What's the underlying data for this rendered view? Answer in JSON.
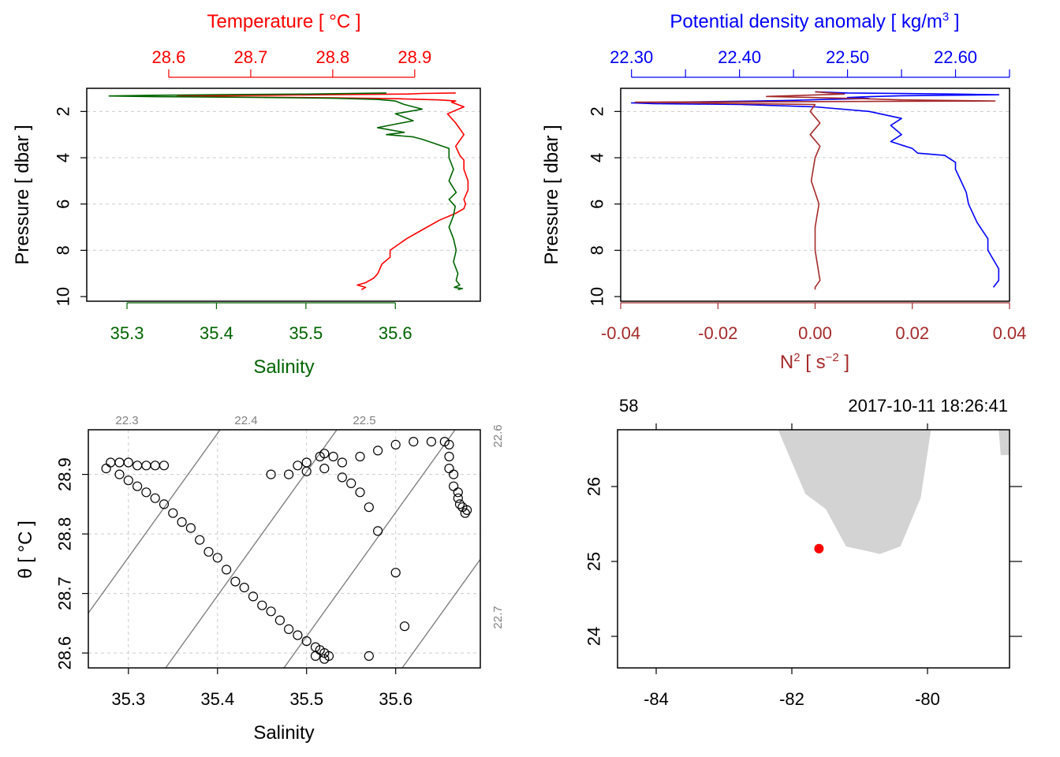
{
  "chart_data": [
    {
      "type": "line",
      "panel": "temperature-salinity-profile",
      "title": "",
      "ylabel": "Pressure [ dbar ]",
      "y_axis": {
        "range": [
          10.2,
          1.0
        ],
        "reversed": true,
        "ticks": [
          2,
          4,
          6,
          8,
          10
        ]
      },
      "top_axis": {
        "label": "Temperature [ °C ]",
        "color": "#ff0000",
        "range": [
          28.5,
          28.98
        ],
        "ticks": [
          28.6,
          28.7,
          28.8,
          28.9
        ]
      },
      "bottom_axis": {
        "label": "Salinity",
        "color": "#006400",
        "range": [
          35.255,
          35.695
        ],
        "ticks": [
          35.3,
          35.4,
          35.5,
          35.6
        ]
      },
      "grid": true,
      "series": [
        {
          "color": "#ff0000",
          "axis": "top",
          "x": [
            28.95,
            28.91,
            28.89,
            28.81,
            28.72,
            28.62,
            28.61,
            28.7,
            28.8,
            28.88,
            28.93,
            28.95,
            28.945,
            28.96,
            28.94,
            28.95,
            28.96,
            28.95,
            28.955,
            28.96,
            28.96,
            28.965,
            28.965,
            28.96,
            28.962,
            28.96,
            28.95,
            28.93,
            28.91,
            28.89,
            28.87,
            28.87,
            28.86,
            28.855,
            28.85,
            28.84,
            28.83,
            28.84,
            28.835
          ],
          "y": [
            1.2,
            1.22,
            1.25,
            1.27,
            1.3,
            1.32,
            1.35,
            1.38,
            1.41,
            1.45,
            1.5,
            1.55,
            1.6,
            1.8,
            2.1,
            2.5,
            3.0,
            3.5,
            3.9,
            4.1,
            4.5,
            5.0,
            5.4,
            5.8,
            6.0,
            6.2,
            6.4,
            6.7,
            7.1,
            7.5,
            8.0,
            8.3,
            8.6,
            9.0,
            9.2,
            9.4,
            9.5,
            9.6,
            9.7
          ]
        },
        {
          "color": "#006400",
          "axis": "bottom",
          "x": [
            35.59,
            35.55,
            35.5,
            35.42,
            35.33,
            35.28,
            35.33,
            35.44,
            35.53,
            35.58,
            35.6,
            35.61,
            35.63,
            35.6,
            35.62,
            35.58,
            35.61,
            35.59,
            35.62,
            35.63,
            35.645,
            35.66,
            35.66,
            35.665,
            35.66,
            35.668,
            35.66,
            35.667,
            35.665,
            35.66,
            35.665,
            35.668,
            35.665,
            35.67,
            35.668,
            35.672,
            35.666,
            35.675,
            35.67
          ],
          "y": [
            1.2,
            1.22,
            1.25,
            1.27,
            1.3,
            1.33,
            1.36,
            1.39,
            1.43,
            1.48,
            1.55,
            1.7,
            1.9,
            2.1,
            2.4,
            2.7,
            2.9,
            3.0,
            3.1,
            3.2,
            3.4,
            3.6,
            4.0,
            4.5,
            5.0,
            5.5,
            5.8,
            6.1,
            6.5,
            7.0,
            7.5,
            8.0,
            8.5,
            9.0,
            9.3,
            9.5,
            9.6,
            9.65,
            9.7
          ]
        }
      ]
    },
    {
      "type": "line",
      "panel": "density-n2-profile",
      "title": "",
      "ylabel": "Pressure [ dbar ]",
      "y_axis": {
        "range": [
          10.2,
          1.0
        ],
        "reversed": true,
        "ticks": [
          2,
          4,
          6,
          8,
          10
        ]
      },
      "top_axis": {
        "label": "Potential density anomaly [ kg/m³ ]",
        "color": "#0000ff",
        "range": [
          22.29,
          22.65
        ],
        "ticks": [
          22.3,
          22.35,
          22.4,
          22.45,
          22.5,
          22.55,
          22.6,
          22.65
        ],
        "tick_labels": [
          "22.30",
          "",
          "22.40",
          "",
          "22.50",
          "",
          "22.60",
          ""
        ]
      },
      "bottom_axis": {
        "label": "N² [ s⁻² ]",
        "color": "#a52a2a",
        "range": [
          -0.04,
          0.04
        ],
        "ticks": [
          -0.04,
          -0.02,
          0.0,
          0.02,
          0.04
        ],
        "tick_labels": [
          "-0.04",
          "-0.02",
          "0.00",
          "0.02",
          "0.04"
        ]
      },
      "grid": true,
      "series": [
        {
          "color": "#0000ff",
          "axis": "top",
          "x": [
            22.47,
            22.5,
            22.6,
            22.64,
            22.55,
            22.52,
            22.5,
            22.52,
            22.48,
            22.45,
            22.4,
            22.33,
            22.3,
            22.32,
            22.4,
            22.47,
            22.52,
            22.55,
            22.54,
            22.55,
            22.54,
            22.56,
            22.565,
            22.59,
            22.6,
            22.6,
            22.605,
            22.61,
            22.612,
            22.62,
            22.63,
            22.63,
            22.64,
            22.64,
            22.635
          ],
          "y": [
            1.15,
            1.2,
            1.25,
            1.28,
            1.32,
            1.36,
            1.4,
            1.44,
            1.48,
            1.52,
            1.56,
            1.6,
            1.63,
            1.66,
            1.7,
            1.8,
            2.0,
            2.3,
            2.6,
            3.0,
            3.3,
            3.6,
            3.8,
            3.9,
            4.2,
            4.5,
            5.0,
            5.5,
            6.0,
            6.8,
            7.5,
            8.0,
            8.8,
            9.3,
            9.6
          ]
        },
        {
          "color": "#a52a2a",
          "axis": "bottom",
          "x": [
            0.0,
            0.006,
            -0.01,
            0.01,
            0.018,
            0.037,
            -0.037,
            0.0,
            -0.001,
            0.001,
            -0.001,
            0.001,
            0.0,
            -0.0008,
            0.0008,
            0.0,
            0.0,
            0.001,
            0.0,
            0.0
          ],
          "y": [
            1.15,
            1.25,
            1.35,
            1.45,
            1.5,
            1.55,
            1.6,
            1.7,
            2.0,
            2.5,
            3.0,
            3.5,
            4.0,
            5.0,
            6.0,
            7.0,
            8.0,
            9.3,
            9.6,
            9.7
          ]
        }
      ]
    },
    {
      "type": "scatter",
      "panel": "ts-diagram",
      "title": "",
      "xlabel": "Salinity",
      "ylabel": "θ [ °C ]",
      "xlim": [
        35.255,
        35.695
      ],
      "ylim": [
        28.575,
        28.975
      ],
      "x_ticks": [
        35.3,
        35.4,
        35.5,
        35.6
      ],
      "y_ticks": [
        28.6,
        28.7,
        28.8,
        28.9
      ],
      "grid": true,
      "isopycnal_labels": [
        "22.3",
        "22.4",
        "22.5",
        "22.6",
        "22.7"
      ],
      "points": [
        [
          35.275,
          28.91
        ],
        [
          35.28,
          28.92
        ],
        [
          35.29,
          28.92
        ],
        [
          35.3,
          28.92
        ],
        [
          35.31,
          28.915
        ],
        [
          35.32,
          28.915
        ],
        [
          35.33,
          28.915
        ],
        [
          35.34,
          28.915
        ],
        [
          35.29,
          28.9
        ],
        [
          35.3,
          28.89
        ],
        [
          35.31,
          28.88
        ],
        [
          35.32,
          28.87
        ],
        [
          35.33,
          28.86
        ],
        [
          35.34,
          28.85
        ],
        [
          35.35,
          28.835
        ],
        [
          35.36,
          28.82
        ],
        [
          35.37,
          28.81
        ],
        [
          35.38,
          28.79
        ],
        [
          35.39,
          28.77
        ],
        [
          35.4,
          28.76
        ],
        [
          35.41,
          28.74
        ],
        [
          35.42,
          28.72
        ],
        [
          35.43,
          28.71
        ],
        [
          35.44,
          28.695
        ],
        [
          35.45,
          28.68
        ],
        [
          35.46,
          28.67
        ],
        [
          35.47,
          28.655
        ],
        [
          35.48,
          28.64
        ],
        [
          35.49,
          28.63
        ],
        [
          35.5,
          28.62
        ],
        [
          35.51,
          28.61
        ],
        [
          35.515,
          28.605
        ],
        [
          35.52,
          28.6
        ],
        [
          35.525,
          28.595
        ],
        [
          35.51,
          28.595
        ],
        [
          35.52,
          28.59
        ],
        [
          35.57,
          28.595
        ],
        [
          35.61,
          28.645
        ],
        [
          35.6,
          28.735
        ],
        [
          35.58,
          28.805
        ],
        [
          35.57,
          28.845
        ],
        [
          35.56,
          28.87
        ],
        [
          35.55,
          28.885
        ],
        [
          35.54,
          28.895
        ],
        [
          35.46,
          28.9
        ],
        [
          35.48,
          28.9
        ],
        [
          35.5,
          28.905
        ],
        [
          35.52,
          28.91
        ],
        [
          35.54,
          28.92
        ],
        [
          35.56,
          28.93
        ],
        [
          35.58,
          28.94
        ],
        [
          35.6,
          28.95
        ],
        [
          35.62,
          28.955
        ],
        [
          35.64,
          28.955
        ],
        [
          35.515,
          28.93
        ],
        [
          35.52,
          28.935
        ],
        [
          35.53,
          28.93
        ],
        [
          35.5,
          28.92
        ],
        [
          35.49,
          28.915
        ],
        [
          35.655,
          28.955
        ],
        [
          35.66,
          28.95
        ],
        [
          35.66,
          28.93
        ],
        [
          35.66,
          28.91
        ],
        [
          35.665,
          28.9
        ],
        [
          35.665,
          28.88
        ],
        [
          35.67,
          28.87
        ],
        [
          35.67,
          28.86
        ],
        [
          35.672,
          28.85
        ],
        [
          35.675,
          28.845
        ],
        [
          35.678,
          28.835
        ],
        [
          35.68,
          28.84
        ]
      ]
    },
    {
      "type": "map",
      "panel": "station-map",
      "title": "",
      "top_labels": [
        "58",
        "2017-10-11 18:26:41"
      ],
      "x_ticks": [
        -84,
        -82,
        -80
      ],
      "y_ticks": [
        24,
        25,
        26
      ],
      "xlim": [
        -84.4,
        -78.9
      ],
      "ylim": [
        23.55,
        26.75
      ],
      "land_color": "#d3d3d3",
      "station": {
        "lon": -81.6,
        "lat": 25.17,
        "color": "#ff0000"
      },
      "land": [
        [
          [
            -82.2,
            26.75
          ],
          [
            -81.8,
            25.9
          ],
          [
            -81.5,
            25.7
          ],
          [
            -81.2,
            25.2
          ],
          [
            -80.7,
            25.1
          ],
          [
            -80.4,
            25.2
          ],
          [
            -80.1,
            25.85
          ],
          [
            -79.95,
            26.75
          ]
        ],
        [
          [
            -78.95,
            26.75
          ],
          [
            -78.8,
            26.75
          ],
          [
            -78.8,
            26.42
          ],
          [
            -78.92,
            26.42
          ]
        ]
      ]
    }
  ]
}
